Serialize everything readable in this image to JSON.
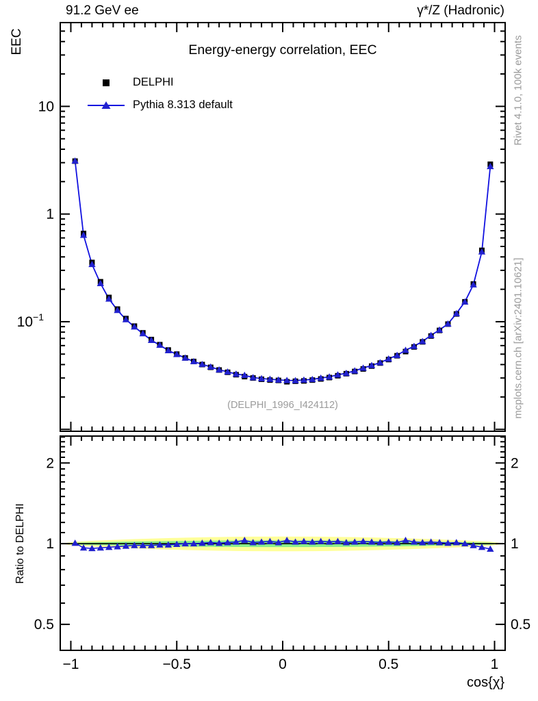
{
  "header": {
    "left": "91.2 GeV ee",
    "right": "γ*/Z (Hadronic)"
  },
  "title": "Energy-energy correlation, EEC",
  "legend": {
    "delphi_label": "DELPHI",
    "pythia_label": "Pythia 8.313 default"
  },
  "watermark": "(DELPHI_1996_I424112)",
  "side_text_top": "Rivet 4.1.0,  100k events",
  "side_text_bottom": "mcplots.cern.ch [arXiv:2401.10621]",
  "axis_titles": {
    "main_y": "EEC",
    "ratio_y": "Ratio to DELPHI",
    "x": "cos{χ}"
  },
  "colors": {
    "data": "#000000",
    "pythia_marker": "#2121cf",
    "pythia_line": "#1010e0",
    "band_outer": "#ffff99",
    "band_inner": "#8aee8a",
    "gray_text": "#9b9b9b"
  },
  "chart_data": {
    "type": "line",
    "title": "Energy-energy correlation, EEC",
    "xlabel": "cos{χ}",
    "ylabel_main": "EEC",
    "ylabel_ratio": "Ratio to DELPHI",
    "xlim": [
      -1.05,
      1.05
    ],
    "ylim_main": [
      0.0096,
      60
    ],
    "ylim_ratio": [
      0.4,
      2.52
    ],
    "x_major_ticks": [
      {
        "v": -1,
        "label": "−1"
      },
      {
        "v": -0.5,
        "label": "−0.5"
      },
      {
        "v": 0,
        "label": "0"
      },
      {
        "v": 0.5,
        "label": "0.5"
      },
      {
        "v": 1,
        "label": "1"
      }
    ],
    "x_minor_step": 0.05,
    "main_y_labeled_ticks": [
      {
        "v": 10,
        "label": "10",
        "sup": ""
      },
      {
        "v": 1,
        "label": "1",
        "sup": ""
      },
      {
        "v": 0.1,
        "label": "10",
        "sup": "−1"
      }
    ],
    "ratio_y_labeled_ticks": [
      {
        "v": 2,
        "label": "2"
      },
      {
        "v": 1,
        "label": "1"
      },
      {
        "v": 0.5,
        "label": "0.5"
      }
    ],
    "ratio_y_minor_ticks": [
      0.5,
      0.6,
      0.7,
      0.8,
      0.9,
      1.1,
      1.2,
      1.3,
      1.4,
      1.5,
      1.6,
      1.7,
      1.8,
      1.9,
      2.1,
      2.2,
      2.3,
      2.4,
      2.5
    ],
    "x": [
      -0.98,
      -0.94,
      -0.9,
      -0.86,
      -0.82,
      -0.78,
      -0.74,
      -0.7,
      -0.66,
      -0.62,
      -0.58,
      -0.54,
      -0.5,
      -0.46,
      -0.42,
      -0.38,
      -0.34,
      -0.3,
      -0.26,
      -0.22,
      -0.18,
      -0.14,
      -0.1,
      -0.06,
      -0.02,
      0.02,
      0.06,
      0.1,
      0.14,
      0.18,
      0.22,
      0.26,
      0.3,
      0.34,
      0.38,
      0.42,
      0.46,
      0.5,
      0.54,
      0.58,
      0.62,
      0.66,
      0.7,
      0.74,
      0.78,
      0.82,
      0.86,
      0.9,
      0.94,
      0.98
    ],
    "series": [
      {
        "name": "DELPHI",
        "values": [
          3.1,
          0.66,
          0.355,
          0.235,
          0.168,
          0.131,
          0.107,
          0.091,
          0.0788,
          0.0683,
          0.0612,
          0.0546,
          0.05,
          0.0461,
          0.0427,
          0.04,
          0.0377,
          0.0356,
          0.0339,
          0.0322,
          0.0309,
          0.03,
          0.0292,
          0.0287,
          0.0285,
          0.0277,
          0.028,
          0.0282,
          0.0287,
          0.0294,
          0.0303,
          0.0315,
          0.0329,
          0.0345,
          0.0364,
          0.0387,
          0.0413,
          0.0445,
          0.0483,
          0.0528,
          0.0583,
          0.065,
          0.0736,
          0.083,
          0.095,
          0.118,
          0.153,
          0.224,
          0.46,
          2.9
        ]
      },
      {
        "name": "Pythia 8.313 default (ratio to DELPHI)",
        "values": [
          1.005,
          0.965,
          0.96,
          0.965,
          0.97,
          0.975,
          0.98,
          0.985,
          0.985,
          0.985,
          0.99,
          0.99,
          0.995,
          1.0,
          1.0,
          1.005,
          1.01,
          1.005,
          1.01,
          1.015,
          1.03,
          1.01,
          1.015,
          1.02,
          1.01,
          1.03,
          1.015,
          1.02,
          1.015,
          1.02,
          1.015,
          1.02,
          1.01,
          1.015,
          1.02,
          1.015,
          1.01,
          1.015,
          1.01,
          1.03,
          1.015,
          1.01,
          1.015,
          1.01,
          1.005,
          1.01,
          1.0,
          0.985,
          0.97,
          0.955
        ]
      }
    ],
    "ratio_band": {
      "outer_halfwidth_center": 0.063,
      "inner_halfwidth_center": 0.029,
      "edge_fraction": 0.25
    },
    "legend_entries": [
      "DELPHI",
      "Pythia 8.313 default"
    ],
    "legend_position": "upper-left",
    "grid": false,
    "yscale": "log"
  }
}
